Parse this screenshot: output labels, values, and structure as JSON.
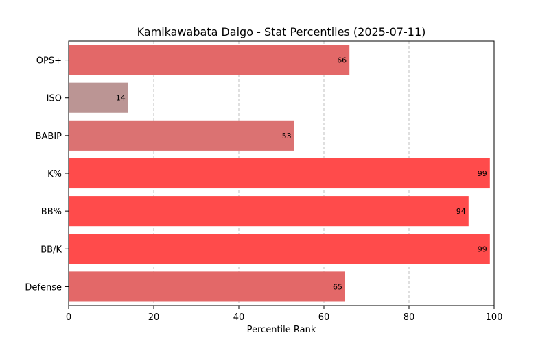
{
  "chart_data": {
    "type": "bar",
    "orientation": "horizontal",
    "title": "Kamikawabata Daigo - Stat Percentiles (2025-07-11)",
    "xlabel": "Percentile Rank",
    "ylabel": "",
    "xlim": [
      0,
      100
    ],
    "xticks": [
      "0",
      "20",
      "40",
      "60",
      "80",
      "100"
    ],
    "grid": "vertical dashed",
    "categories": [
      "OPS+",
      "ISO",
      "BABIP",
      "K%",
      "BB%",
      "BB/K",
      "Defense"
    ],
    "values": [
      66,
      14,
      53,
      99,
      94,
      99,
      65
    ],
    "value_labels": [
      "66",
      "14",
      "53",
      "99",
      "94",
      "99",
      "65"
    ],
    "colors": [
      "#e36868",
      "#bb9594",
      "#db7272",
      "#ff4b4b",
      "#ff4b4b",
      "#ff4b4b",
      "#e36868"
    ]
  }
}
